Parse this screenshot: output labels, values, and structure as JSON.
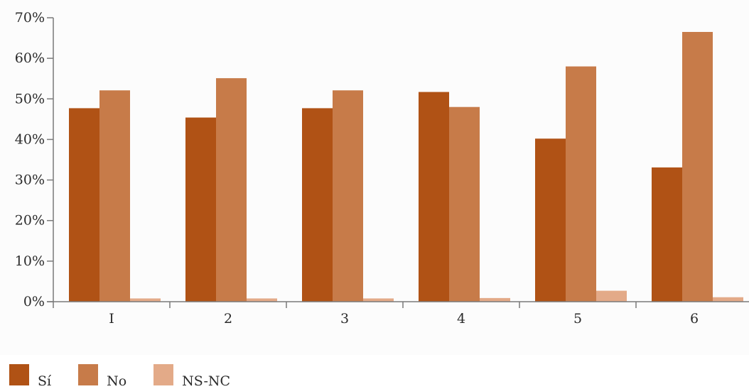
{
  "chart_data": {
    "type": "bar",
    "categories": [
      "I",
      "2",
      "3",
      "4",
      "5",
      "6"
    ],
    "series": [
      {
        "name": "Sí",
        "color": "#b05215",
        "values": [
          47.7,
          45.4,
          47.7,
          51.7,
          40.2,
          33.1
        ]
      },
      {
        "name": "No",
        "color": "#c77b49",
        "values": [
          52.1,
          55.1,
          52.1,
          48.0,
          58.0,
          66.5
        ]
      },
      {
        "name": "NS-NC",
        "color": "#e3aa88",
        "values": [
          0.8,
          0.8,
          0.8,
          0.9,
          2.7,
          1.1
        ]
      }
    ],
    "yticks": [
      "0%",
      "10%",
      "20%",
      "30%",
      "40%",
      "50%",
      "60%",
      "70%"
    ],
    "ylim": [
      0,
      70
    ],
    "title": "",
    "xlabel": "",
    "ylabel": "",
    "legend_position": "bottom-left",
    "grid": false
  }
}
